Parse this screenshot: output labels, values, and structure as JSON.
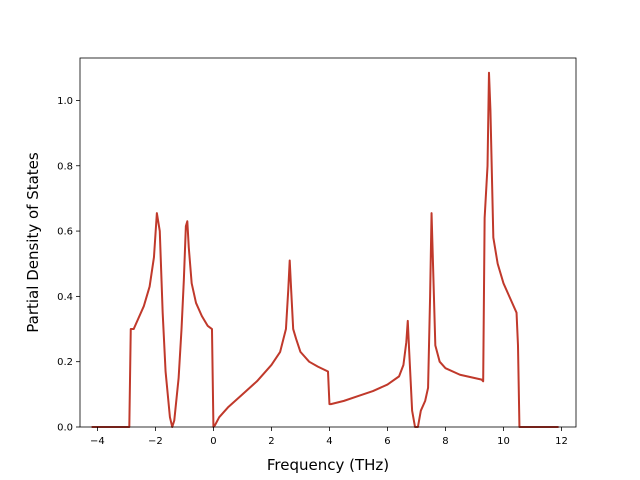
{
  "chart_data": {
    "type": "line",
    "title": "",
    "xlabel": "Frequency (THz)",
    "ylabel": "Partial Density of States",
    "xlim": [
      -4.6,
      12.5
    ],
    "ylim": [
      0.0,
      1.13
    ],
    "grid": false,
    "legend": "none",
    "x_ticks": [
      -4,
      -2,
      0,
      2,
      4,
      6,
      8,
      10,
      12
    ],
    "x_tick_labels": [
      "−4",
      "−2",
      "0",
      "2",
      "4",
      "6",
      "8",
      "10",
      "12"
    ],
    "y_ticks": [
      0.0,
      0.2,
      0.4,
      0.6,
      0.8,
      1.0
    ],
    "y_tick_labels": [
      "0.0",
      "0.2",
      "0.4",
      "0.6",
      "0.8",
      "1.0"
    ],
    "series": [
      {
        "color": "#c0392b",
        "x": [
          -4.2,
          -3.5,
          -2.9,
          -2.85,
          -2.8,
          -2.75,
          -2.6,
          -2.4,
          -2.2,
          -2.05,
          -1.95,
          -1.85,
          -1.75,
          -1.65,
          -1.5,
          -1.42,
          -1.35,
          -1.2,
          -1.1,
          -1.02,
          -0.95,
          -0.9,
          -0.85,
          -0.75,
          -0.6,
          -0.4,
          -0.2,
          -0.05,
          0.0,
          0.05,
          0.2,
          0.5,
          1.0,
          1.5,
          2.0,
          2.3,
          2.5,
          2.58,
          2.63,
          2.68,
          2.75,
          2.85,
          3.0,
          3.3,
          3.6,
          3.95,
          4.0,
          4.05,
          4.5,
          5.0,
          5.5,
          6.0,
          6.4,
          6.55,
          6.65,
          6.7,
          6.75,
          6.85,
          6.95,
          7.05,
          7.15,
          7.3,
          7.4,
          7.47,
          7.52,
          7.57,
          7.65,
          7.8,
          8.0,
          8.5,
          9.0,
          9.25,
          9.3,
          9.35,
          9.45,
          9.5,
          9.55,
          9.65,
          9.8,
          10.0,
          10.2,
          10.45,
          10.5,
          10.55,
          10.7,
          11.0,
          11.5,
          11.9
        ],
        "y": [
          0.0,
          0.0,
          0.0,
          0.3,
          0.3,
          0.3,
          0.33,
          0.37,
          0.43,
          0.52,
          0.655,
          0.6,
          0.35,
          0.17,
          0.03,
          0.0,
          0.02,
          0.15,
          0.3,
          0.45,
          0.615,
          0.63,
          0.55,
          0.44,
          0.38,
          0.34,
          0.31,
          0.3,
          0.0,
          0.005,
          0.03,
          0.06,
          0.1,
          0.14,
          0.19,
          0.23,
          0.3,
          0.42,
          0.51,
          0.42,
          0.3,
          0.27,
          0.23,
          0.2,
          0.185,
          0.17,
          0.07,
          0.07,
          0.08,
          0.095,
          0.11,
          0.13,
          0.155,
          0.19,
          0.26,
          0.325,
          0.23,
          0.05,
          0.0,
          0.0,
          0.05,
          0.08,
          0.12,
          0.4,
          0.655,
          0.5,
          0.25,
          0.2,
          0.18,
          0.16,
          0.15,
          0.145,
          0.14,
          0.64,
          0.8,
          1.085,
          0.97,
          0.58,
          0.5,
          0.44,
          0.4,
          0.35,
          0.25,
          0.0,
          0.0,
          0.0,
          0.0,
          0.0
        ]
      }
    ]
  }
}
